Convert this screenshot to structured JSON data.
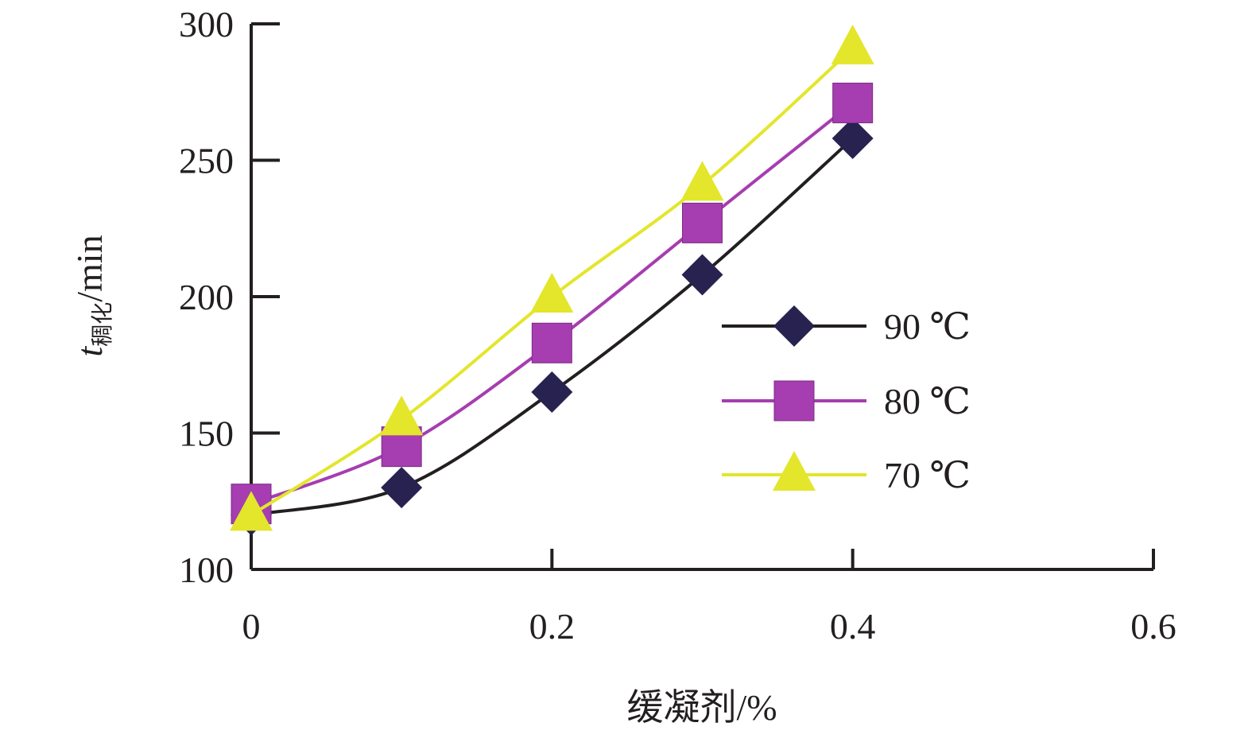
{
  "chart_data": {
    "type": "line",
    "xlabel": "缓凝剂/%",
    "ylabel_main": "t",
    "ylabel_sub": "稠化",
    "ylabel_unit": "/min",
    "xlim": [
      0,
      0.6
    ],
    "ylim": [
      100,
      300
    ],
    "x_ticks": [
      "0",
      "0.2",
      "0.4",
      "0.6"
    ],
    "y_ticks": [
      "100",
      "150",
      "200",
      "250",
      "300"
    ],
    "grid": false,
    "legend_position": "right-middle",
    "series": [
      {
        "name": "90 ℃",
        "color": "#27224f",
        "line_color": "#231f20",
        "marker": "diamond",
        "x": [
          0,
          0.1,
          0.2,
          0.3,
          0.4
        ],
        "y": [
          120,
          130,
          165,
          208,
          258
        ]
      },
      {
        "name": "80 ℃",
        "color": "#a63db0",
        "line_color": "#a63db0",
        "marker": "square",
        "x": [
          0,
          0.1,
          0.2,
          0.3,
          0.4
        ],
        "y": [
          124,
          145,
          183,
          227,
          271
        ]
      },
      {
        "name": "70 ℃",
        "color": "#e3e62b",
        "line_color": "#e3e62b",
        "marker": "triangle",
        "x": [
          0,
          0.1,
          0.2,
          0.3,
          0.4
        ],
        "y": [
          120,
          155,
          200,
          241,
          291
        ]
      }
    ]
  }
}
